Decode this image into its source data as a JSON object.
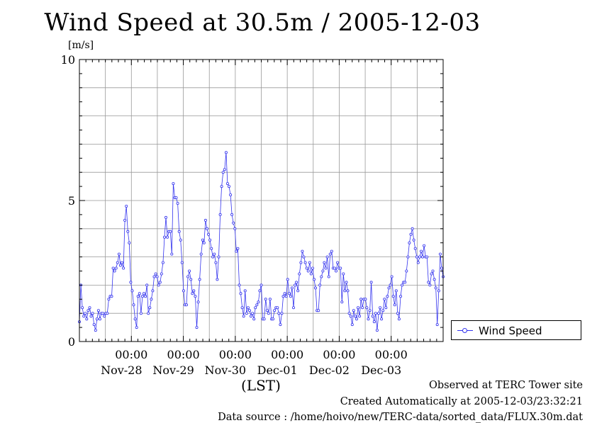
{
  "chart_data": {
    "type": "line",
    "title": "Wind Speed at 30.5m / 2005-12-03",
    "ylabel": "[m/s]",
    "xlabel": "(LST)",
    "ylim": [
      0,
      10
    ],
    "y_ticks": [
      "0",
      "5",
      "10"
    ],
    "x_tick_time": "00:00",
    "x_tick_dates": [
      "Nov-28",
      "Nov-29",
      "Nov-30",
      "Dec-01",
      "Dec-02",
      "Dec-03"
    ],
    "x_range_days": [
      -1,
      6
    ],
    "grid": true,
    "legend_position": "right",
    "series": [
      {
        "name": "Wind Speed",
        "color": "#3333ee",
        "values": [
          0.7,
          2.0,
          1.2,
          0.9,
          1.0,
          0.8,
          1.1,
          1.2,
          0.9,
          1.0,
          0.6,
          0.4,
          0.8,
          1.1,
          0.8,
          1.0,
          1.0,
          0.9,
          1.0,
          1.0,
          1.5,
          1.6,
          1.6,
          2.6,
          2.5,
          2.6,
          2.8,
          3.1,
          2.7,
          2.8,
          2.6,
          4.3,
          4.8,
          3.9,
          3.5,
          2.1,
          1.8,
          1.3,
          0.8,
          0.5,
          1.6,
          1.7,
          1.0,
          1.6,
          1.7,
          1.6,
          2.0,
          1.0,
          1.2,
          1.5,
          1.8,
          2.3,
          2.4,
          2.3,
          2.0,
          2.1,
          2.4,
          2.8,
          3.7,
          4.4,
          3.7,
          3.9,
          3.9,
          3.1,
          5.6,
          5.1,
          5.1,
          4.9,
          3.9,
          3.6,
          2.8,
          1.8,
          1.3,
          1.3,
          2.3,
          2.5,
          2.2,
          1.7,
          1.8,
          1.6,
          0.5,
          1.4,
          2.2,
          3.1,
          3.6,
          3.5,
          4.3,
          4.0,
          3.8,
          3.6,
          3.3,
          3.0,
          3.1,
          2.8,
          2.2,
          3.0,
          4.5,
          5.5,
          6.0,
          6.1,
          6.7,
          5.6,
          5.5,
          5.2,
          4.5,
          4.2,
          4.0,
          3.2,
          3.3,
          2.0,
          1.7,
          1.2,
          0.9,
          1.8,
          1.0,
          1.2,
          1.1,
          0.9,
          1.0,
          0.8,
          1.2,
          1.3,
          1.4,
          1.8,
          2.0,
          0.8,
          0.8,
          1.5,
          1.1,
          1.0,
          1.5,
          0.8,
          0.8,
          1.1,
          1.2,
          1.2,
          1.0,
          0.6,
          1.0,
          1.6,
          1.7,
          1.6,
          2.2,
          1.7,
          1.6,
          1.9,
          1.2,
          2.0,
          2.1,
          1.8,
          2.4,
          2.8,
          3.2,
          3.0,
          2.8,
          2.6,
          2.5,
          2.8,
          2.4,
          2.6,
          2.2,
          1.9,
          1.1,
          1.1,
          2.0,
          2.3,
          2.5,
          2.8,
          2.6,
          3.0,
          2.3,
          3.1,
          3.2,
          2.6,
          2.6,
          2.5,
          2.8,
          2.6,
          2.6,
          1.4,
          2.4,
          1.8,
          2.1,
          1.8,
          1.0,
          0.9,
          0.6,
          1.1,
          0.9,
          0.8,
          1.2,
          0.9,
          1.5,
          1.2,
          1.5,
          1.5,
          1.2,
          0.8,
          1.1,
          2.1,
          0.9,
          0.7,
          1.0,
          0.4,
          1.0,
          1.2,
          0.8,
          1.1,
          1.5,
          1.2,
          1.6,
          1.9,
          2.0,
          2.3,
          1.6,
          1.3,
          1.8,
          1.0,
          0.8,
          1.6,
          2.0,
          2.1,
          2.1,
          2.5,
          3.0,
          3.5,
          3.8,
          4.0,
          3.6,
          3.3,
          3.0,
          2.8,
          3.0,
          3.2,
          3.0,
          3.4,
          3.0,
          3.0,
          2.1,
          2.0,
          2.4,
          2.5,
          2.2,
          1.9,
          0.6,
          1.8,
          3.1,
          2.6,
          2.3
        ]
      }
    ]
  },
  "footer": {
    "line1": "Observed at TERC Tower site",
    "line2": "Created Automatically at 2005-12-03/23:32:21",
    "line3": "Data source : /home/hoivo/new/TERC-data/sorted_data/FLUX.30m.dat"
  }
}
